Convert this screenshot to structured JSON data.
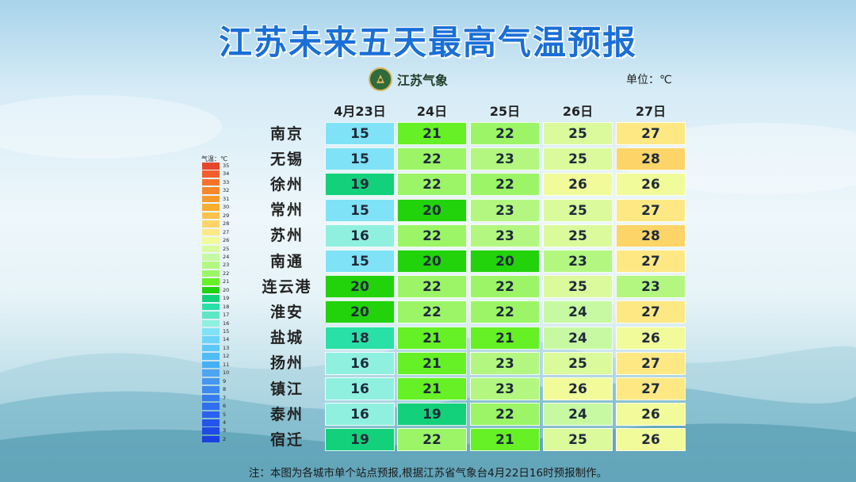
{
  "title": "江苏未来五天最高气温预报",
  "logo_text": "江苏气象",
  "unit_label": "单位：℃",
  "dates": [
    "4月23日",
    "24日",
    "25日",
    "26日",
    "27日"
  ],
  "cities": [
    "南京",
    "无锡",
    "徐州",
    "常州",
    "苏州",
    "南通",
    "连云港",
    "淮安",
    "盐城",
    "扬州",
    "镇江",
    "泰州",
    "宿迁"
  ],
  "chart_data": {
    "type": "table",
    "title": "江苏未来五天最高气温预报",
    "unit": "℃",
    "columns": [
      "4月23日",
      "24日",
      "25日",
      "26日",
      "27日"
    ],
    "rows": [
      {
        "city": "南京",
        "values": [
          15,
          21,
          22,
          25,
          27
        ]
      },
      {
        "city": "无锡",
        "values": [
          15,
          22,
          23,
          25,
          28
        ]
      },
      {
        "city": "徐州",
        "values": [
          19,
          22,
          22,
          26,
          26
        ]
      },
      {
        "city": "常州",
        "values": [
          15,
          20,
          23,
          25,
          27
        ]
      },
      {
        "city": "苏州",
        "values": [
          16,
          22,
          23,
          25,
          28
        ]
      },
      {
        "city": "南通",
        "values": [
          15,
          20,
          20,
          23,
          27
        ]
      },
      {
        "city": "连云港",
        "values": [
          20,
          22,
          22,
          25,
          23
        ]
      },
      {
        "city": "淮安",
        "values": [
          20,
          22,
          22,
          24,
          27
        ]
      },
      {
        "city": "盐城",
        "values": [
          18,
          21,
          21,
          24,
          26
        ]
      },
      {
        "city": "扬州",
        "values": [
          16,
          21,
          23,
          25,
          27
        ]
      },
      {
        "city": "镇江",
        "values": [
          16,
          21,
          23,
          26,
          27
        ]
      },
      {
        "city": "泰州",
        "values": [
          16,
          19,
          22,
          24,
          26
        ]
      },
      {
        "city": "宿迁",
        "values": [
          19,
          22,
          21,
          25,
          26
        ]
      }
    ]
  },
  "legend": {
    "title": "气温：℃",
    "labels": [
      "35",
      "34",
      "33",
      "32",
      "31",
      "30",
      "29",
      "28",
      "27",
      "26",
      "25",
      "24",
      "23",
      "22",
      "21",
      "20",
      "19",
      "18",
      "17",
      "16",
      "15",
      "14",
      "13",
      "12",
      "11",
      "10",
      "9",
      "8",
      "7",
      "6",
      "5",
      "4",
      "3",
      "2"
    ]
  },
  "temp_colors": {
    "2": "#1b3fe0",
    "3": "#1f4ae6",
    "4": "#2455ea",
    "5": "#2a62ee",
    "6": "#2f6ff0",
    "7": "#357cf0",
    "8": "#3c89ef",
    "9": "#4596ef",
    "10": "#4fa4f2",
    "11": "#46b0f5",
    "12": "#4fbcf6",
    "13": "#5cc8f7",
    "14": "#6cd4f8",
    "15": "#7fe2f6",
    "16": "#8ff0e0",
    "17": "#5fe6c6",
    "18": "#29e0a7",
    "19": "#12d17a",
    "20": "#22d20b",
    "21": "#66f026",
    "22": "#9cf567",
    "23": "#b3f781",
    "24": "#c7f9a2",
    "25": "#dafa9c",
    "26": "#f1fb9a",
    "27": "#fde884",
    "28": "#fcd468",
    "29": "#fbc24c",
    "30": "#f9ae2c",
    "31": "#f89a2b",
    "32": "#f6862b",
    "33": "#f4722b",
    "34": "#f25e2a",
    "35": "#e8462a"
  },
  "note": "注：本图为各城市单个站点预报,根据江苏省气象台4月22日16时预报制作。"
}
